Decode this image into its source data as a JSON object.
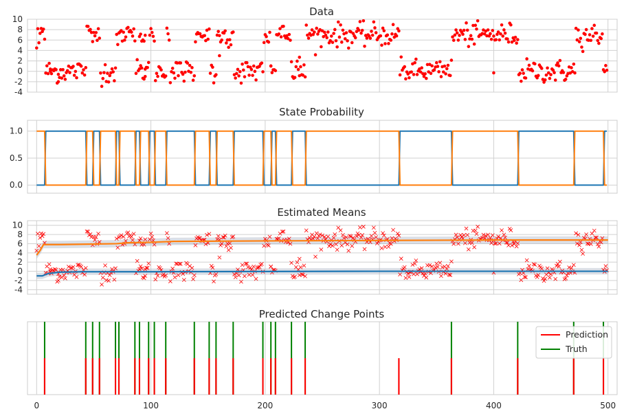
{
  "chart_data": [
    {
      "type": "scatter",
      "title": "Data",
      "xlim": [
        -8,
        508
      ],
      "ylim": [
        -4,
        10
      ],
      "yticks": [
        -4,
        -2,
        0,
        2,
        4,
        6,
        8,
        10
      ],
      "grid": true,
      "point_color": "#ff0000",
      "series": [
        {
          "regime": "low",
          "mean": 0,
          "spread": 1.1,
          "x_ranges": [
            [
              8,
              43
            ],
            [
              56,
              69
            ],
            [
              87,
              98
            ],
            [
              104,
              113
            ],
            [
              117,
              138
            ],
            [
              152,
              157
            ],
            [
              173,
              198
            ],
            [
              205,
              209
            ],
            [
              223,
              235
            ],
            [
              318,
              363
            ],
            [
              422,
              471
            ],
            [
              496,
              499
            ]
          ]
        },
        {
          "regime": "high",
          "mean": 7,
          "spread": 1.1,
          "x_ranges": [
            [
              0,
              7
            ],
            [
              44,
              49
            ],
            [
              50,
              55
            ],
            [
              70,
              86
            ],
            [
              90,
              95
            ],
            [
              99,
              103
            ],
            [
              114,
              116
            ],
            [
              139,
              151
            ],
            [
              158,
              172
            ],
            [
              199,
              204
            ],
            [
              210,
              222
            ],
            [
              236,
              317
            ],
            [
              364,
              421
            ],
            [
              472,
              495
            ]
          ]
        }
      ],
      "isolated_points": [
        [
          12,
          0
        ],
        [
          19,
          -2
        ],
        [
          95,
          -1
        ],
        [
          160,
          3
        ],
        [
          205,
          1
        ],
        [
          230,
          2.7
        ],
        [
          400,
          -0.3
        ]
      ]
    },
    {
      "type": "line",
      "title": "State Probability",
      "xlim": [
        -8,
        508
      ],
      "ylim": [
        -0.15,
        1.2
      ],
      "yticks": [
        0.0,
        0.5,
        1.0
      ],
      "ytick_labels": [
        "0.0",
        "0.5",
        "1.0"
      ],
      "grid": true,
      "change_points": [
        7,
        43,
        49,
        55,
        69,
        72,
        86,
        90,
        98,
        103,
        113,
        138,
        151,
        157,
        172,
        198,
        205,
        209,
        223,
        235,
        317,
        363,
        421,
        470,
        496
      ],
      "series": [
        {
          "color": "#1f77b4",
          "start_value": 0
        },
        {
          "color": "#ff7f0e",
          "start_value": 1
        }
      ]
    },
    {
      "type": "line",
      "title": "Estimated Means",
      "xlim": [
        -8,
        508
      ],
      "ylim": [
        -5,
        11
      ],
      "yticks": [
        -4,
        -2,
        0,
        2,
        4,
        6,
        8,
        10
      ],
      "grid": true,
      "series": [
        {
          "color": "#1f77b4",
          "points": [
            [
              0,
              -1
            ],
            [
              5,
              -1
            ],
            [
              10,
              -0.5
            ],
            [
              20,
              -0.2
            ],
            [
              40,
              -0.1
            ],
            [
              100,
              -0.1
            ],
            [
              200,
              -0.05
            ],
            [
              300,
              0
            ],
            [
              500,
              0
            ]
          ],
          "band": 0.7
        },
        {
          "color": "#ff7f0e",
          "points": [
            [
              0,
              3.5
            ],
            [
              3,
              4.5
            ],
            [
              6,
              5.8
            ],
            [
              20,
              5.8
            ],
            [
              45,
              5.9
            ],
            [
              70,
              6.0
            ],
            [
              80,
              6.2
            ],
            [
              100,
              6.3
            ],
            [
              120,
              6.5
            ],
            [
              200,
              6.6
            ],
            [
              300,
              6.7
            ],
            [
              400,
              6.8
            ],
            [
              500,
              6.8
            ]
          ],
          "band": 0.8
        }
      ],
      "observation_marker": "x",
      "observation_color": "#ff0000"
    },
    {
      "type": "line",
      "title": "Predicted Change Points",
      "xlim": [
        -8,
        508
      ],
      "xticks": [
        0,
        100,
        200,
        300,
        400,
        500
      ],
      "xtick_labels": [
        "0",
        "100",
        "200",
        "300",
        "400",
        "500"
      ],
      "grid": true,
      "legend": {
        "position": "top-right",
        "entries": [
          "Prediction",
          "Truth"
        ]
      },
      "series": [
        {
          "name": "Prediction",
          "color": "#ff0000",
          "x": [
            7,
            43,
            49,
            55,
            69,
            72,
            86,
            90,
            98,
            103,
            113,
            138,
            151,
            157,
            172,
            198,
            205,
            209,
            223,
            235,
            317,
            363,
            421,
            470,
            496
          ],
          "height": 0.5
        },
        {
          "name": "Truth",
          "color": "#008000",
          "x": [
            7,
            43,
            49,
            55,
            69,
            72,
            86,
            90,
            98,
            103,
            113,
            138,
            151,
            157,
            172,
            198,
            205,
            209,
            223,
            235,
            363,
            421,
            470,
            496
          ],
          "height": 1.0
        }
      ]
    }
  ]
}
